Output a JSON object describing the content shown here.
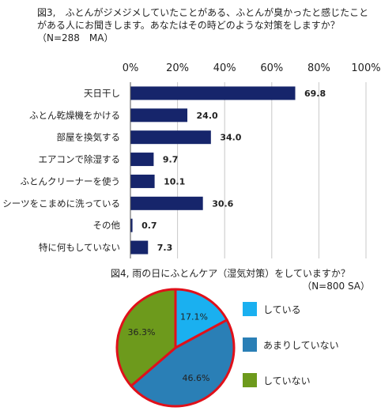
{
  "chart_data": [
    {
      "type": "bar",
      "title": "図3,　ふとんがジメジメしていたことがある、ふとんが臭かったと感じたことがある人にお聞きします。あなたはその時どのような対策をしますか？（N=288　MA）",
      "categories": [
        "天日干し",
        "ふとん乾燥機をかける",
        "部屋を換気する",
        "エアコンで除湿する",
        "ふとんクリーナーを使う",
        "シーツをこまめに洗っている",
        "その他",
        "特に何もしていない"
      ],
      "values": [
        69.8,
        24.0,
        34.0,
        9.7,
        10.1,
        30.6,
        0.7,
        7.3
      ],
      "value_labels": [
        "69.8",
        "24.0",
        "34.0",
        "9.7",
        "10.1",
        "30.6",
        "0.7",
        "7.3"
      ],
      "xlim": [
        0,
        100
      ],
      "ticks": [
        "0%",
        "20%",
        "40%",
        "60%",
        "80%",
        "100%"
      ],
      "orientation": "horizontal",
      "grid": true,
      "bar_color": "#16256b"
    },
    {
      "type": "pie",
      "title": "図4, 雨の日にふとんケア（湿気対策）をしていますか？",
      "subtitle": "（N=800 SA）",
      "labels": [
        "している",
        "あまりしていない",
        "していない"
      ],
      "values": [
        17.1,
        46.6,
        36.3
      ],
      "value_labels": [
        "17.1%",
        "46.6%",
        "36.3%"
      ],
      "colors": [
        "#1ab0f0",
        "#2a7fb6",
        "#6d9a1c"
      ],
      "outline_color": "#e0101a"
    }
  ]
}
